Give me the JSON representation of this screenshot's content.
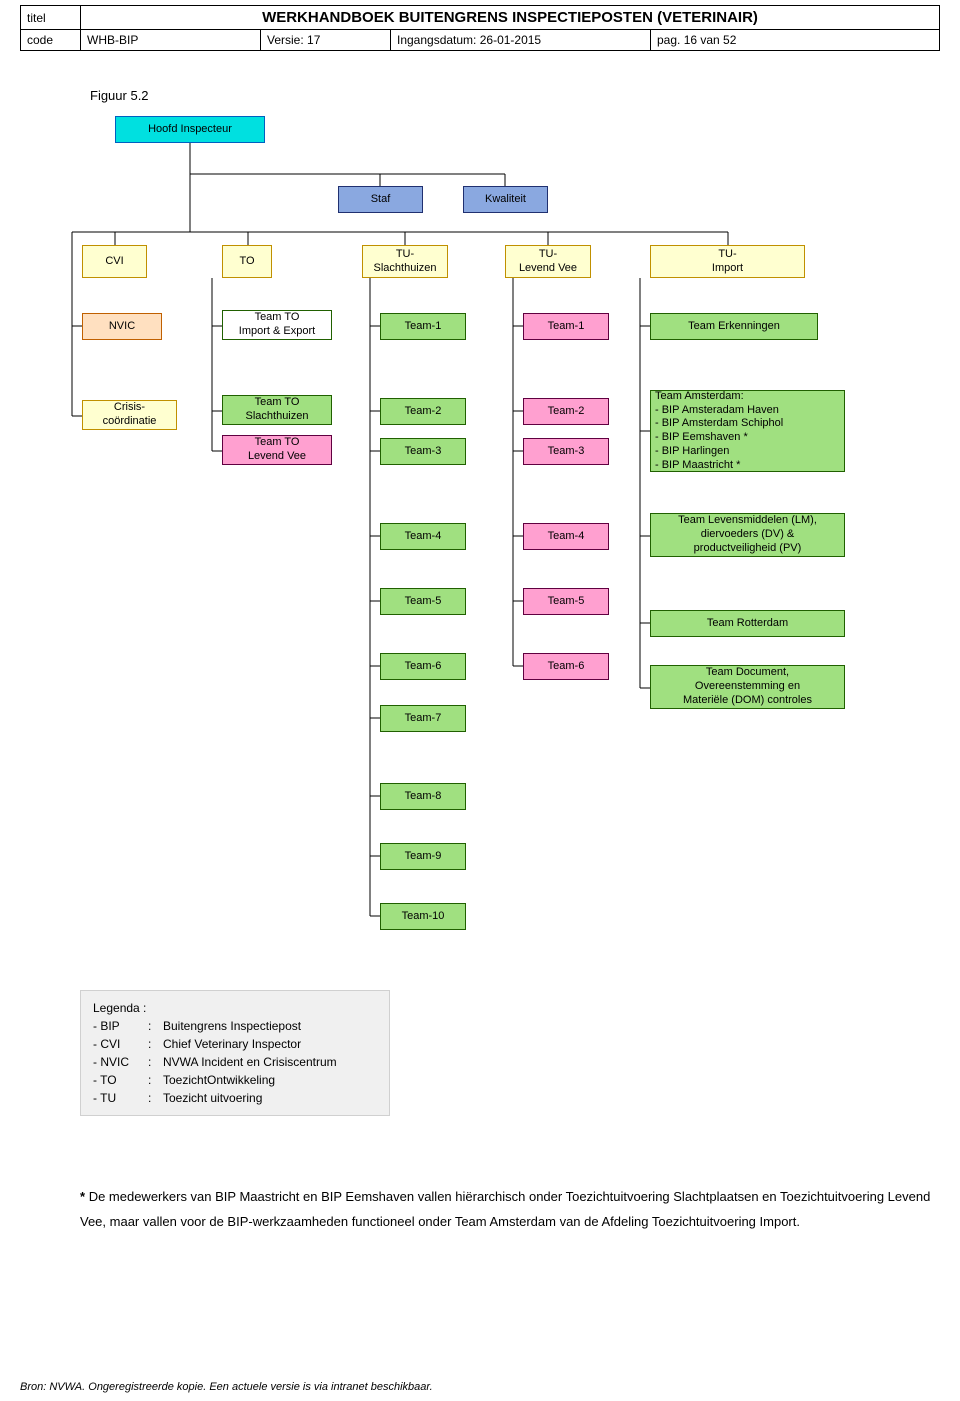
{
  "header": {
    "titel_label": "titel",
    "title": "WERKHANDBOEK BUITENGRENS INSPECTIEPOSTEN (VETERINAIR)",
    "code_label": "code",
    "code_value": "WHB-BIP",
    "versie": "Versie: 17",
    "ingangsdatum": "Ingangsdatum: 26-01-2015",
    "pag": "pag. 16 van 52"
  },
  "figure_label": "Figuur 5.2",
  "colors": {
    "cyan_fill": "#00e0e0",
    "cyan_border": "#0060c0",
    "blue_fill": "#8aa8e0",
    "blue_border": "#203070",
    "yellow_fill": "#ffffd0",
    "yellow_border": "#c09000",
    "orange_fill": "#ffe0c0",
    "orange_border": "#c06000",
    "green_fill": "#a0e080",
    "green_border": "#206000",
    "pink_fill": "#ffa0d0",
    "pink_border": "#600040",
    "white_fill": "#ffffff",
    "line": "#000000"
  },
  "nodes": {
    "root": "Hoofd Inspecteur",
    "staf": "Staf",
    "kwaliteit": "Kwaliteit",
    "cvi": "CVI",
    "to": "TO",
    "tu_slacht": "TU-\nSlachthuizen",
    "tu_levend": "TU-\nLevend Vee",
    "tu_import": "TU-\nImport",
    "nvic": "NVIC",
    "team_to_ie": "Team TO\nImport & Export",
    "team1_a": "Team-1",
    "team1_b": "Team-1",
    "team_erk": "Team Erkenningen",
    "crisis": "Crisis-\ncoördinatie",
    "team_to_slacht": "Team TO\nSlachthuizen",
    "team_to_levend": "Team TO\nLevend Vee",
    "team2_a": "Team-2",
    "team2_b": "Team-2",
    "team3_a": "Team-3",
    "team3_b": "Team-3",
    "team_amsterdam": "Team Amsterdam:\n- BIP Amsteradam Haven\n- BIP Amsterdam Schiphol\n- BIP Eemshaven *\n- BIP Harlingen\n- BIP Maastricht *",
    "team4_a": "Team-4",
    "team4_b": "Team-4",
    "team_lm": "Team Levensmiddelen (LM),\ndiervoeders (DV) &\nproductveiligheid (PV)",
    "team5_a": "Team-5",
    "team5_b": "Team-5",
    "team_rotterdam": "Team Rotterdam",
    "team6_a": "Team-6",
    "team6_b": "Team-6",
    "team7": "Team-7",
    "team_doc": "Team Document,\nOvereenstemming en\nMateriële (DOM) controles",
    "team8": "Team-8",
    "team9": "Team-9",
    "team10": "Team-10"
  },
  "legend": {
    "title": "Legenda  :",
    "rows": [
      {
        "k": "- BIP",
        "v": "Buitengrens Inspectiepost"
      },
      {
        "k": "- CVI",
        "v": "Chief Veterinary Inspector"
      },
      {
        "k": "- NVIC",
        "v": "NVWA Incident en Crisiscentrum"
      },
      {
        "k": "- TO",
        "v": "ToezichtOntwikkeling"
      },
      {
        "k": "- TU",
        "v": "Toezicht uitvoering"
      }
    ]
  },
  "footnote": {
    "star": "*",
    "text": "  De medewerkers van BIP Maastricht en BIP Eemshaven vallen hiërarchisch onder Toezichtuitvoering Slachtplaatsen en Toezichtuitvoering Levend Vee, maar vallen voor de BIP-werkzaamheden functioneel onder Team Amsterdam van de Afdeling Toezichtuitvoering Import."
  },
  "footer": "Bron: NVWA. Ongeregistreerde kopie. Een actuele versie is via intranet beschikbaar."
}
